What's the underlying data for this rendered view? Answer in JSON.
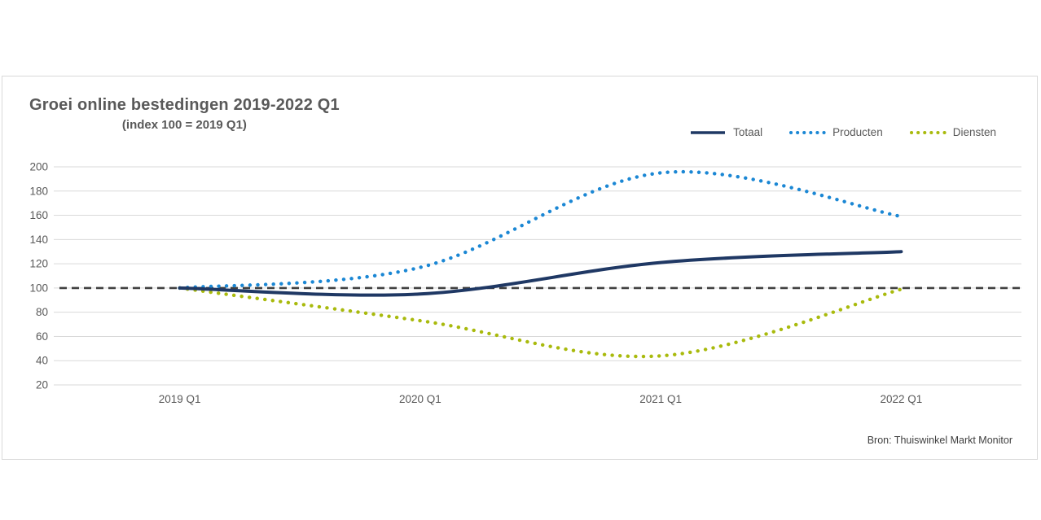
{
  "header": {
    "title": "Groei online bestedingen 2019-2022 Q1",
    "subtitle": "(index 100 = 2019 Q1)"
  },
  "source": "Bron: Thuiswinkel Markt Monitor",
  "chart_data": {
    "type": "line",
    "title": "Groei online bestedingen 2019-2022 Q1",
    "subtitle": "(index 100 = 2019 Q1)",
    "categories": [
      "2019 Q1",
      "2020 Q1",
      "2021 Q1",
      "2022 Q1"
    ],
    "series": [
      {
        "name": "Totaal",
        "values": [
          100,
          95,
          121,
          130
        ],
        "color": "#1F3864",
        "style": "solid"
      },
      {
        "name": "Producten",
        "values": [
          100,
          117,
          195,
          159
        ],
        "color": "#1B87D4",
        "style": "dotted"
      },
      {
        "name": "Diensten",
        "values": [
          100,
          73,
          44,
          99
        ],
        "color": "#A9BA0D",
        "style": "dotted"
      }
    ],
    "xlabel": "",
    "ylabel": "",
    "ylim": [
      20,
      200
    ],
    "ytick_step": 20,
    "grid": true,
    "legend_position": "top-right",
    "reference_line": {
      "value": 100,
      "style": "dashed",
      "color": "#404040"
    },
    "gridline_color": "#D9D9D9",
    "axis_label_color": "#595959"
  }
}
